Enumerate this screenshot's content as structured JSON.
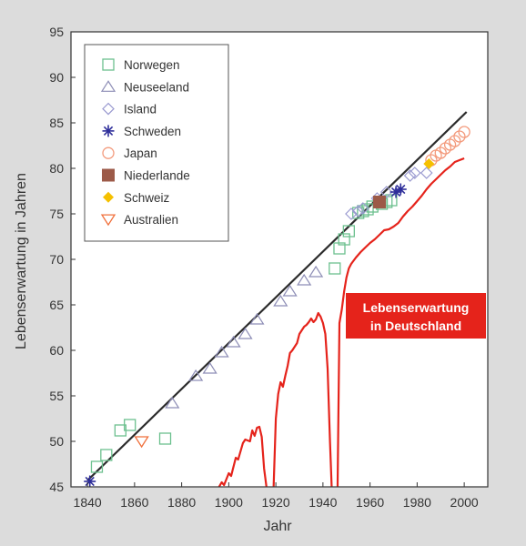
{
  "chart_data": {
    "type": "scatter",
    "xlabel": "Jahr",
    "ylabel": "Lebenserwartung in Jahren",
    "xlim": [
      1840,
      2000
    ],
    "ylim": [
      45,
      95
    ],
    "x_ticks": [
      "1840",
      "1860",
      "1880",
      "1900",
      "1920",
      "1940",
      "1960",
      "1980",
      "2000"
    ],
    "y_ticks": [
      "45",
      "50",
      "55",
      "60",
      "65",
      "70",
      "75",
      "80",
      "85",
      "90",
      "95"
    ],
    "grid": false,
    "legend_position": "top-left",
    "colors": {
      "norwegen": "#6cc08e",
      "neuseeland": "#8e8eb6",
      "island": "#9a9ad0",
      "schweden": "#2e2e9a",
      "japan": "#f39a7c",
      "niederlande": "#9c5a48",
      "schweiz": "#f5c000",
      "australien": "#f0703c",
      "trend": "#2b2b2b",
      "deutschland": "#e5231b"
    },
    "series": [
      {
        "name": "Norwegen",
        "marker": "square-open",
        "points": [
          [
            1844,
            47.2
          ],
          [
            1848,
            48.5
          ],
          [
            1854,
            51.2
          ],
          [
            1858,
            51.8
          ],
          [
            1873,
            50.3
          ],
          [
            1945,
            69
          ],
          [
            1947,
            71.2
          ],
          [
            1949,
            72.2
          ],
          [
            1951,
            73.1
          ],
          [
            1955,
            75.1
          ],
          [
            1957,
            75.3
          ],
          [
            1959,
            75.5
          ],
          [
            1961,
            75.8
          ],
          [
            1965,
            76.1
          ],
          [
            1967,
            76.3
          ],
          [
            1969,
            76.5
          ]
        ]
      },
      {
        "name": "Neuseeland",
        "marker": "triangle-open",
        "points": [
          [
            1876,
            54.2
          ],
          [
            1886,
            57.2
          ],
          [
            1892,
            58
          ],
          [
            1897,
            59.8
          ],
          [
            1902,
            60.9
          ],
          [
            1907,
            61.8
          ],
          [
            1912,
            63.4
          ],
          [
            1922,
            65.4
          ],
          [
            1926,
            66.5
          ],
          [
            1932,
            67.7
          ],
          [
            1937,
            68.6
          ]
        ]
      },
      {
        "name": "Island",
        "marker": "diamond-open",
        "points": [
          [
            1952,
            75
          ],
          [
            1955,
            75.3
          ],
          [
            1957,
            75.6
          ],
          [
            1963,
            76.7
          ],
          [
            1967,
            77.4
          ],
          [
            1977,
            79.2
          ],
          [
            1979,
            79.5
          ],
          [
            1984,
            79.5
          ]
        ]
      },
      {
        "name": "Schweden",
        "marker": "asterisk",
        "points": [
          [
            1841,
            45.6
          ],
          [
            1971,
            77.4
          ],
          [
            1973,
            77.7
          ]
        ]
      },
      {
        "name": "Japan",
        "marker": "circle-open",
        "points": [
          [
            1986,
            80.9
          ],
          [
            1988,
            81.4
          ],
          [
            1990,
            81.7
          ],
          [
            1992,
            82.2
          ],
          [
            1994,
            82.6
          ],
          [
            1996,
            83.0
          ],
          [
            1998,
            83.5
          ],
          [
            2000,
            84.0
          ]
        ]
      },
      {
        "name": "Niederlande",
        "marker": "square-filled",
        "points": [
          [
            1964,
            76.3
          ]
        ]
      },
      {
        "name": "Schweiz",
        "marker": "diamond-filled",
        "points": [
          [
            1985,
            80.5
          ]
        ]
      },
      {
        "name": "Australien",
        "marker": "triangle-down-open",
        "points": [
          [
            1863,
            50
          ]
        ]
      }
    ],
    "trend_line": {
      "from": [
        1840,
        45.7
      ],
      "to": [
        2001,
        86.2
      ]
    },
    "germany_line": {
      "points": [
        [
          1890,
          44
        ],
        [
          1895,
          44.6
        ],
        [
          1897,
          45.5
        ],
        [
          1898,
          45.2
        ],
        [
          1900,
          46.5
        ],
        [
          1901,
          46.2
        ],
        [
          1903,
          48.2
        ],
        [
          1904,
          48.0
        ],
        [
          1906,
          49.8
        ],
        [
          1907,
          50.2
        ],
        [
          1909,
          50.0
        ],
        [
          1910,
          51.2
        ],
        [
          1911,
          50.6
        ],
        [
          1912,
          51.5
        ],
        [
          1913,
          51.6
        ],
        [
          1914,
          50.5
        ],
        [
          1915,
          47
        ],
        [
          1916,
          45
        ],
        [
          1917,
          43.8
        ],
        [
          1918,
          41.5
        ],
        [
          1919,
          44.5
        ],
        [
          1920,
          52.5
        ],
        [
          1921,
          55.2
        ],
        [
          1922,
          56.5
        ],
        [
          1923,
          56
        ],
        [
          1924,
          57.2
        ],
        [
          1925,
          58.3
        ],
        [
          1926,
          59.7
        ],
        [
          1927,
          60
        ],
        [
          1928,
          60.4
        ],
        [
          1929,
          60.8
        ],
        [
          1930,
          61.8
        ],
        [
          1931,
          62.2
        ],
        [
          1932,
          62.6
        ],
        [
          1933,
          62.8
        ],
        [
          1934,
          63.1
        ],
        [
          1935,
          63.5
        ],
        [
          1936,
          63.1
        ],
        [
          1937,
          63.4
        ],
        [
          1938,
          64.1
        ],
        [
          1939,
          63.7
        ],
        [
          1940,
          63
        ],
        [
          1941,
          61.8
        ],
        [
          1942,
          58
        ],
        [
          1943,
          50
        ],
        [
          1944,
          43
        ],
        [
          1945,
          40
        ],
        [
          1946,
          40
        ],
        [
          1947,
          63
        ],
        [
          1948,
          64.5
        ],
        [
          1949,
          66.5
        ],
        [
          1950,
          68
        ],
        [
          1951,
          69
        ],
        [
          1952,
          69.5
        ],
        [
          1954,
          70.2
        ],
        [
          1956,
          70.8
        ],
        [
          1958,
          71.3
        ],
        [
          1960,
          71.8
        ],
        [
          1962,
          72.2
        ],
        [
          1964,
          72.7
        ],
        [
          1966,
          73.2
        ],
        [
          1968,
          73.3
        ],
        [
          1970,
          73.6
        ],
        [
          1972,
          74
        ],
        [
          1974,
          74.7
        ],
        [
          1976,
          75.3
        ],
        [
          1978,
          75.8
        ],
        [
          1980,
          76.4
        ],
        [
          1982,
          77
        ],
        [
          1984,
          77.7
        ],
        [
          1986,
          78.3
        ],
        [
          1988,
          78.8
        ],
        [
          1990,
          79.3
        ],
        [
          1992,
          79.8
        ],
        [
          1994,
          80.2
        ],
        [
          1996,
          80.7
        ],
        [
          1998,
          80.9
        ],
        [
          2000,
          81.1
        ]
      ]
    },
    "annotation": {
      "lines": [
        "Lebenserwartung",
        "in Deutschland"
      ]
    }
  }
}
